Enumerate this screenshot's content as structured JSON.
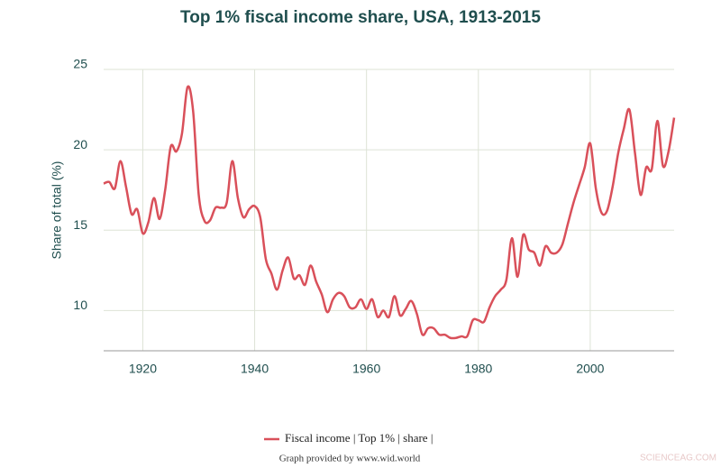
{
  "chart_data": {
    "type": "line",
    "title": "Top 1% fiscal income share, USA, 1913-2015",
    "y_label": "Share of total (%)",
    "x": [
      1913,
      1914,
      1915,
      1916,
      1917,
      1918,
      1919,
      1920,
      1921,
      1922,
      1923,
      1924,
      1925,
      1926,
      1927,
      1928,
      1929,
      1930,
      1931,
      1932,
      1933,
      1934,
      1935,
      1936,
      1937,
      1938,
      1939,
      1940,
      1941,
      1942,
      1943,
      1944,
      1945,
      1946,
      1947,
      1948,
      1949,
      1950,
      1951,
      1952,
      1953,
      1954,
      1955,
      1956,
      1957,
      1958,
      1959,
      1960,
      1961,
      1962,
      1963,
      1964,
      1965,
      1966,
      1967,
      1968,
      1969,
      1970,
      1971,
      1972,
      1973,
      1974,
      1975,
      1976,
      1977,
      1978,
      1979,
      1980,
      1981,
      1982,
      1983,
      1984,
      1985,
      1986,
      1987,
      1988,
      1989,
      1990,
      1991,
      1992,
      1993,
      1994,
      1995,
      1996,
      1997,
      1998,
      1999,
      2000,
      2001,
      2002,
      2003,
      2004,
      2005,
      2006,
      2007,
      2008,
      2009,
      2010,
      2011,
      2012,
      2013,
      2014,
      2015
    ],
    "series": [
      {
        "name": "Fiscal income | Top 1% | share |",
        "color": "#d9505a",
        "values": [
          17.9,
          18.0,
          17.6,
          19.3,
          17.7,
          16.0,
          16.3,
          14.8,
          15.5,
          17.0,
          15.7,
          17.5,
          20.2,
          19.9,
          21.0,
          23.9,
          22.4,
          17.2,
          15.6,
          15.6,
          16.4,
          16.4,
          16.7,
          19.3,
          17.0,
          15.8,
          16.3,
          16.5,
          15.8,
          13.2,
          12.3,
          11.3,
          12.5,
          13.3,
          12.0,
          12.2,
          11.6,
          12.8,
          11.8,
          11.0,
          9.9,
          10.7,
          11.1,
          10.9,
          10.2,
          10.2,
          10.7,
          10.1,
          10.7,
          9.6,
          10.0,
          9.6,
          10.9,
          9.7,
          10.1,
          10.6,
          9.8,
          8.5,
          8.9,
          8.9,
          8.5,
          8.5,
          8.3,
          8.3,
          8.4,
          8.4,
          9.4,
          9.4,
          9.3,
          10.2,
          10.9,
          11.3,
          11.9,
          14.5,
          12.1,
          14.7,
          13.8,
          13.6,
          12.8,
          14.0,
          13.6,
          13.6,
          14.1,
          15.4,
          16.7,
          17.8,
          18.9,
          20.4,
          17.6,
          16.1,
          16.2,
          17.7,
          19.8,
          21.3,
          22.5,
          19.8,
          17.2,
          18.9,
          18.8,
          21.8,
          19.0,
          19.9,
          22.0
        ]
      }
    ],
    "xlim": [
      1913,
      2015
    ],
    "ylim": [
      7.5,
      25
    ],
    "xticks": [
      1920,
      1940,
      1960,
      1980,
      2000
    ],
    "yticks": [
      10,
      15,
      20,
      25
    ],
    "grid": true,
    "legend": "bottom"
  },
  "credit": "Graph provided by www.wid.world",
  "watermark": "SCIENCEAG.COM"
}
